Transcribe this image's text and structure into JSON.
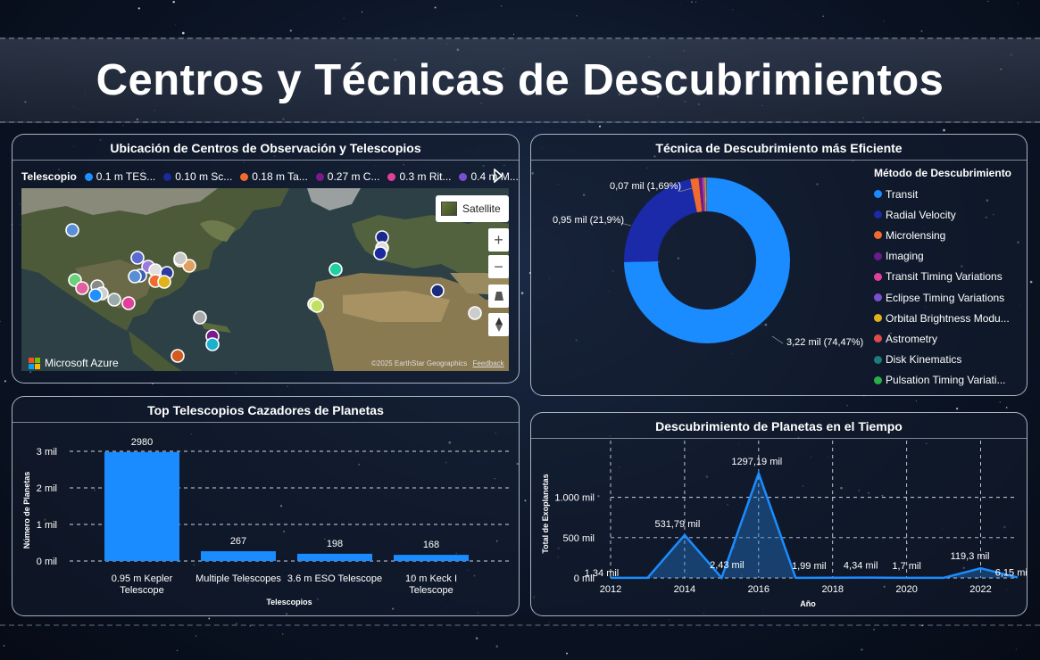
{
  "page_title": "Centros y Técnicas de Descubrimientos",
  "map_card": {
    "title": "Ubicación de Centros de Observación y Telescopios",
    "legend_label": "Telescopio",
    "legend_items": [
      {
        "label": "0.1 m TES...",
        "color": "#1e90ff"
      },
      {
        "label": "0.10 m Sc...",
        "color": "#1a2a9c"
      },
      {
        "label": "0.18 m Ta...",
        "color": "#ef6c2e"
      },
      {
        "label": "0.27 m C...",
        "color": "#7a1a8c"
      },
      {
        "label": "0.3 m Rit...",
        "color": "#e0409a"
      },
      {
        "label": "0.4 m M...",
        "color": "#7b4fd0"
      }
    ],
    "satellite_label": "Satellite",
    "brand": "Microsoft Azure",
    "credit": "©2025 EarthStar Geographics",
    "feedback": "Feedback"
  },
  "donut_card": {
    "title": "Técnica de Descubrimiento más Eficiente",
    "legend_title": "Método de Descubrimiento",
    "labels": {
      "a": "0,07 mil (1,69%)",
      "b": "0,95 mil (21,9%)",
      "c": "3,22 mil (74,47%)"
    },
    "methods": [
      {
        "label": "Transit",
        "color": "#1a8cff"
      },
      {
        "label": "Radial Velocity",
        "color": "#1a2aa8"
      },
      {
        "label": "Microlensing",
        "color": "#ef6c2e"
      },
      {
        "label": "Imaging",
        "color": "#6a1c8c"
      },
      {
        "label": "Transit Timing Variations",
        "color": "#e0409a"
      },
      {
        "label": "Eclipse Timing Variations",
        "color": "#7b4fd0"
      },
      {
        "label": "Orbital Brightness Modu...",
        "color": "#e0b31a"
      },
      {
        "label": "Astrometry",
        "color": "#e04a4a"
      },
      {
        "label": "Disk Kinematics",
        "color": "#1f7a7a"
      },
      {
        "label": "Pulsation Timing Variati...",
        "color": "#2ab04a"
      }
    ]
  },
  "bar_card": {
    "title": "Top Telescopios Cazadores de Planetas"
  },
  "line_card": {
    "title": "Descubrimiento de Planetas en el Tiempo"
  },
  "chart_data": [
    {
      "type": "pie",
      "title": "Técnica de Descubrimiento más Eficiente",
      "categories": [
        "Transit",
        "Radial Velocity",
        "Microlensing",
        "Imaging",
        "Transit Timing Variations",
        "Eclipse Timing Variations",
        "Orbital Brightness Modulation",
        "Astrometry",
        "Disk Kinematics",
        "Pulsation Timing Variations"
      ],
      "values": [
        3.22,
        0.95,
        0.07,
        0.03,
        0.01,
        0.01,
        0.01,
        0.005,
        0.003,
        0.002
      ]
    },
    {
      "type": "bar",
      "title": "Top Telescopios Cazadores de Planetas",
      "categories": [
        "0.95 m Kepler Telescope",
        "Multiple Telescopes",
        "3.6 m ESO Telescope",
        "10 m Keck I Telescope"
      ],
      "values": [
        2980,
        267,
        198,
        168
      ],
      "data_labels": [
        "2980",
        "267",
        "198",
        "168"
      ],
      "xlabel": "Telescopios",
      "ylabel": "Número de Planetas",
      "ylim": [
        0,
        3000
      ],
      "yticks": [
        0,
        1000,
        2000,
        3000
      ],
      "ytick_labels": [
        "0 mil",
        "1 mil",
        "2 mil",
        "3 mil"
      ]
    },
    {
      "type": "area",
      "title": "Descubrimiento de Planetas en el Tiempo",
      "x": [
        2012,
        2013,
        2014,
        2015,
        2016,
        2017,
        2018,
        2019,
        2020,
        2021,
        2022,
        2023
      ],
      "values": [
        1.34,
        1.5,
        531.79,
        2.43,
        1297.19,
        1.99,
        3,
        4.34,
        1.7,
        2,
        119.3,
        6.15
      ],
      "data_labels": [
        "1,34 mil",
        "",
        "531,79 mil",
        "2,43 mil",
        "1297,19 mil",
        "1,99 mil",
        "",
        "4,34 mil",
        "1,7 mil",
        "",
        "119,3 mil",
        "6,15 mil"
      ],
      "xlabel": "Año",
      "ylabel": "Total de Exoplanetas",
      "ylim": [
        0,
        1350
      ],
      "yticks": [
        0,
        500,
        1000
      ],
      "ytick_labels": [
        "0 mil",
        "500 mil",
        "1.000 mil"
      ],
      "xticks": [
        2012,
        2014,
        2016,
        2018,
        2020,
        2022
      ]
    }
  ]
}
